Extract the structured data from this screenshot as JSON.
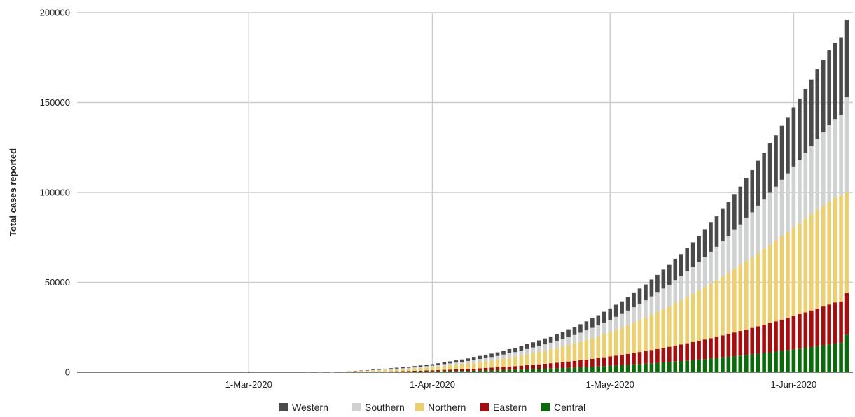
{
  "chart_data": {
    "type": "bar",
    "stacked": true,
    "title": "",
    "xlabel": "",
    "ylabel": "Total cases reported",
    "ylim": [
      0,
      200000
    ],
    "y_ticks": [
      {
        "value": 0,
        "label": "0"
      },
      {
        "value": 50000,
        "label": "50000"
      },
      {
        "value": 100000,
        "label": "100000"
      },
      {
        "value": 150000,
        "label": "150000"
      },
      {
        "value": 200000,
        "label": "200000"
      }
    ],
    "x_range": [
      "2020-02-01",
      "2020-06-11"
    ],
    "x_ticks": [
      {
        "date": "2020-03-01",
        "label": "1-Mar-2020"
      },
      {
        "date": "2020-04-01",
        "label": "1-Apr-2020"
      },
      {
        "date": "2020-05-01",
        "label": "1-May-2020"
      },
      {
        "date": "2020-06-01",
        "label": "1-Jun-2020"
      }
    ],
    "grid": true,
    "legend_position": "bottom",
    "x": [
      "2020-03-11",
      "2020-03-13",
      "2020-03-15",
      "2020-03-17",
      "2020-03-18",
      "2020-03-19",
      "2020-03-20",
      "2020-03-21",
      "2020-03-22",
      "2020-03-23",
      "2020-03-24",
      "2020-03-25",
      "2020-03-26",
      "2020-03-27",
      "2020-03-28",
      "2020-03-29",
      "2020-03-30",
      "2020-03-31",
      "2020-04-01",
      "2020-04-02",
      "2020-04-03",
      "2020-04-04",
      "2020-04-05",
      "2020-04-06",
      "2020-04-07",
      "2020-04-08",
      "2020-04-09",
      "2020-04-10",
      "2020-04-11",
      "2020-04-12",
      "2020-04-13",
      "2020-04-14",
      "2020-04-15",
      "2020-04-16",
      "2020-04-17",
      "2020-04-18",
      "2020-04-19",
      "2020-04-20",
      "2020-04-21",
      "2020-04-22",
      "2020-04-23",
      "2020-04-24",
      "2020-04-25",
      "2020-04-26",
      "2020-04-27",
      "2020-04-28",
      "2020-04-29",
      "2020-04-30",
      "2020-05-01",
      "2020-05-02",
      "2020-05-03",
      "2020-05-04",
      "2020-05-05",
      "2020-05-06",
      "2020-05-07",
      "2020-05-08",
      "2020-05-09",
      "2020-05-10",
      "2020-05-11",
      "2020-05-12",
      "2020-05-13",
      "2020-05-14",
      "2020-05-15",
      "2020-05-16",
      "2020-05-17",
      "2020-05-18",
      "2020-05-19",
      "2020-05-20",
      "2020-05-21",
      "2020-05-22",
      "2020-05-23",
      "2020-05-24",
      "2020-05-25",
      "2020-05-26",
      "2020-05-27",
      "2020-05-28",
      "2020-05-29",
      "2020-05-30",
      "2020-05-31",
      "2020-06-01",
      "2020-06-02",
      "2020-06-03",
      "2020-06-04",
      "2020-06-05",
      "2020-06-06",
      "2020-06-07",
      "2020-06-08",
      "2020-06-09",
      "2020-06-10"
    ],
    "series": [
      {
        "name": "Western",
        "color": "#4a4a4a",
        "values": [
          10,
          20,
          40,
          70,
          100,
          150,
          200,
          250,
          300,
          350,
          400,
          450,
          500,
          550,
          600,
          650,
          700,
          750,
          800,
          900,
          1000,
          1100,
          1200,
          1300,
          1400,
          1600,
          1700,
          1800,
          1900,
          2000,
          2100,
          2300,
          2400,
          2600,
          2800,
          2900,
          3100,
          3300,
          3500,
          3700,
          4000,
          4200,
          4500,
          4700,
          5000,
          5300,
          5600,
          6000,
          6300,
          6700,
          7000,
          7500,
          7900,
          8400,
          8800,
          9400,
          9900,
          10500,
          11000,
          11800,
          12200,
          13000,
          13600,
          14500,
          15200,
          16200,
          17000,
          18000,
          19000,
          20000,
          21000,
          22400,
          23500,
          25000,
          26000,
          27500,
          28600,
          30000,
          31200,
          32800,
          34000,
          35600,
          37000,
          38800,
          40000,
          41500,
          42300,
          43000,
          43000
        ]
      },
      {
        "name": "Southern",
        "color": "#cfd2d0",
        "values": [
          10,
          20,
          40,
          70,
          100,
          150,
          200,
          250,
          300,
          350,
          400,
          450,
          500,
          550,
          600,
          650,
          700,
          750,
          800,
          900,
          1000,
          1100,
          1200,
          1300,
          1400,
          1600,
          1700,
          1800,
          1900,
          2000,
          2200,
          2400,
          2500,
          2700,
          2900,
          3100,
          3300,
          3500,
          3700,
          4000,
          4200,
          4500,
          4700,
          5000,
          5300,
          5700,
          6000,
          6400,
          6800,
          7200,
          7600,
          8100,
          8600,
          9100,
          9600,
          10200,
          10800,
          11400,
          12000,
          12800,
          13400,
          14200,
          15000,
          15800,
          16700,
          17600,
          18500,
          19500,
          20500,
          21600,
          22700,
          23900,
          25000,
          26300,
          27500,
          28800,
          30000,
          31400,
          32700,
          34000,
          35400,
          36700,
          38100,
          39400,
          41000,
          42500,
          43700,
          44800,
          53000
        ]
      },
      {
        "name": "Northern",
        "color": "#ecd06f",
        "values": [
          20,
          40,
          70,
          130,
          200,
          300,
          400,
          500,
          600,
          700,
          800,
          900,
          1000,
          1100,
          1200,
          1350,
          1500,
          1650,
          1800,
          2000,
          2200,
          2400,
          2600,
          2800,
          3000,
          3300,
          3500,
          3800,
          4000,
          4300,
          4700,
          5000,
          5300,
          5700,
          6100,
          6500,
          6900,
          7300,
          7700,
          8200,
          8700,
          9200,
          9700,
          10300,
          10900,
          11500,
          12200,
          12900,
          13600,
          14400,
          15100,
          16000,
          16800,
          17800,
          18600,
          19600,
          20500,
          21600,
          22500,
          23700,
          24600,
          25800,
          26800,
          28000,
          29100,
          30400,
          31500,
          32800,
          34000,
          35400,
          36600,
          38000,
          39300,
          40800,
          42100,
          43600,
          44900,
          46400,
          47700,
          49200,
          50500,
          52000,
          53300,
          54800,
          56000,
          57300,
          58300,
          59000,
          56000
        ]
      },
      {
        "name": "Eastern",
        "color": "#a50e0e",
        "values": [
          0,
          10,
          20,
          30,
          50,
          80,
          100,
          130,
          160,
          200,
          240,
          280,
          330,
          380,
          430,
          480,
          540,
          600,
          660,
          720,
          790,
          860,
          940,
          1020,
          1110,
          1200,
          1300,
          1400,
          1510,
          1620,
          1740,
          1870,
          2000,
          2140,
          2290,
          2440,
          2600,
          2770,
          2950,
          3130,
          3330,
          3530,
          3740,
          3960,
          4190,
          4430,
          4680,
          4940,
          5210,
          5490,
          5780,
          6080,
          6390,
          6710,
          7040,
          7380,
          7730,
          8090,
          8460,
          8840,
          9230,
          9630,
          10040,
          10460,
          10890,
          11330,
          11780,
          12240,
          12710,
          13190,
          13680,
          14180,
          14690,
          15210,
          15740,
          16280,
          16830,
          17390,
          17960,
          18540,
          19130,
          19730,
          20340,
          20960,
          21590,
          22230,
          22880,
          23000,
          23100
        ]
      },
      {
        "name": "Central",
        "color": "#0b6b0b",
        "values": [
          0,
          10,
          10,
          20,
          30,
          40,
          60,
          80,
          100,
          120,
          140,
          170,
          200,
          230,
          260,
          300,
          340,
          380,
          420,
          470,
          520,
          570,
          630,
          690,
          750,
          820,
          890,
          960,
          1040,
          1120,
          1210,
          1300,
          1390,
          1490,
          1590,
          1700,
          1810,
          1930,
          2050,
          2180,
          2310,
          2450,
          2590,
          2740,
          2890,
          3050,
          3210,
          3380,
          3560,
          3740,
          3930,
          4130,
          4330,
          4540,
          4760,
          4980,
          5210,
          5450,
          5700,
          5950,
          6210,
          6480,
          6760,
          7040,
          7330,
          7630,
          7940,
          8260,
          8590,
          8920,
          9260,
          9610,
          9970,
          10340,
          10710,
          11100,
          11490,
          11890,
          12300,
          12720,
          13150,
          13590,
          14030,
          14490,
          14950,
          15430,
          15910,
          16400,
          20900
        ]
      }
    ]
  }
}
